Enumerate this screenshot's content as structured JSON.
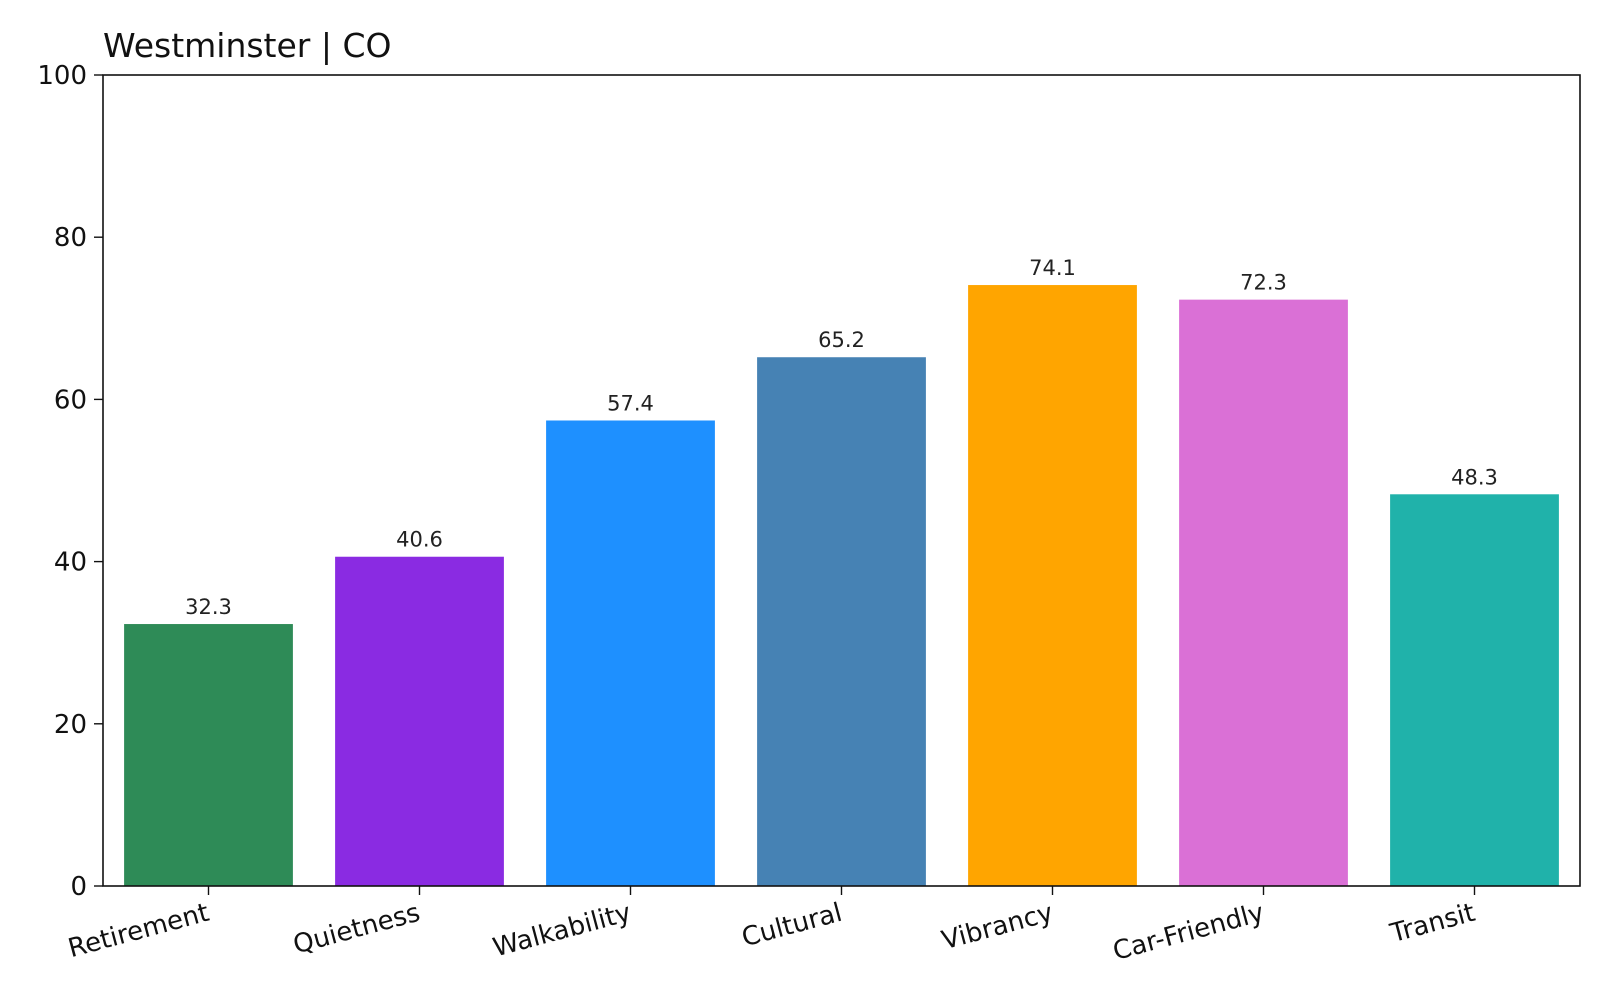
{
  "chart_data": {
    "type": "bar",
    "title": "Westminster | CO",
    "xlabel": "",
    "ylabel": "",
    "ylim": [
      0,
      100
    ],
    "yticks": [
      0,
      20,
      40,
      60,
      80,
      100
    ],
    "categories": [
      "Retirement",
      "Quietness",
      "Walkability",
      "Cultural",
      "Vibrancy",
      "Car-Friendly",
      "Transit"
    ],
    "values": [
      32.3,
      40.6,
      57.4,
      65.2,
      74.1,
      72.3,
      48.3
    ],
    "value_labels": [
      "32.3",
      "40.6",
      "57.4",
      "65.2",
      "74.1",
      "72.3",
      "48.3"
    ],
    "colors": [
      "#2e8b57",
      "#8a2be2",
      "#1e90ff",
      "#4682b4",
      "#ffa500",
      "#da70d6",
      "#20b2aa"
    ],
    "grid": false,
    "legend": "none"
  }
}
